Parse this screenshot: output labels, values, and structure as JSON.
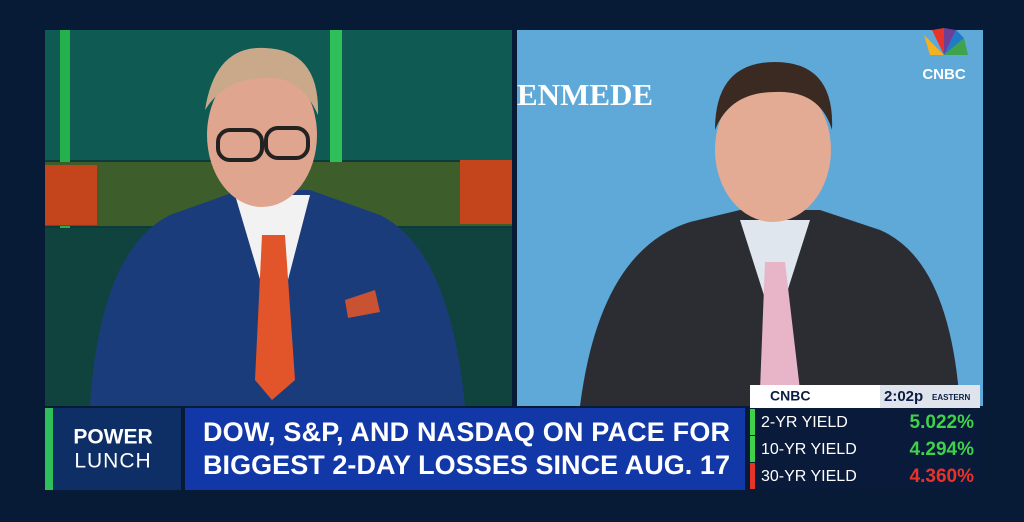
{
  "logo": {
    "network": "CNBC"
  },
  "guest_backdrop": {
    "text": "ENMEDE"
  },
  "show": {
    "line1": "POWER",
    "line2": "LUNCH"
  },
  "headline": {
    "lines": [
      "DOW, S&P, AND NASDAQ ON PACE FOR",
      "BIGGEST 2-DAY LOSSES SINCE AUG. 17"
    ]
  },
  "ticker": {
    "network": "CNBC",
    "time": "2:02p",
    "zone": "EASTERN",
    "rows": [
      {
        "label": "2-YR YIELD",
        "value": "5.022%",
        "color": "#3fd14a"
      },
      {
        "label": "10-YR YIELD",
        "value": "4.294%",
        "color": "#3fd14a"
      },
      {
        "label": "30-YR YIELD",
        "value": "4.360%",
        "color": "#e8332b"
      }
    ]
  }
}
